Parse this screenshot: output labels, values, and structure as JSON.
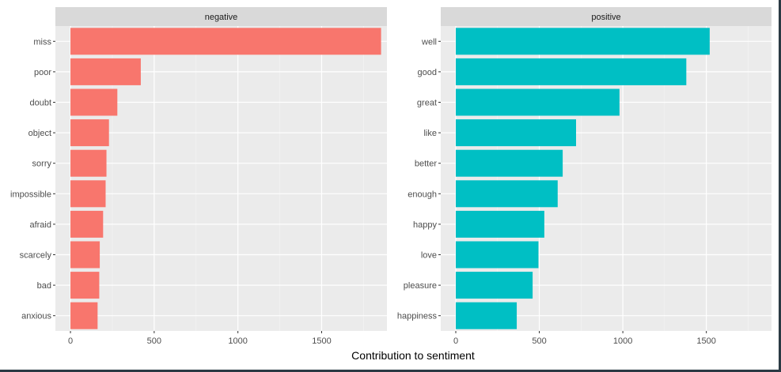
{
  "chart_data": {
    "type": "bar",
    "orientation": "horizontal",
    "xlabel": "Contribution to sentiment",
    "xlim": [
      0,
      1800
    ],
    "xticks": [
      0,
      500,
      1000,
      1500
    ],
    "grid": true,
    "legend": "none",
    "facets": [
      {
        "name": "negative",
        "color": "#F8766D",
        "categories": [
          "miss",
          "poor",
          "doubt",
          "object",
          "sorry",
          "impossible",
          "afraid",
          "scarcely",
          "bad",
          "anxious"
        ],
        "values": [
          1855,
          420,
          280,
          230,
          215,
          210,
          195,
          175,
          172,
          162
        ]
      },
      {
        "name": "positive",
        "color": "#00BFC4",
        "categories": [
          "well",
          "good",
          "great",
          "like",
          "better",
          "enough",
          "happy",
          "love",
          "pleasure",
          "happiness"
        ],
        "values": [
          1520,
          1380,
          980,
          720,
          640,
          610,
          530,
          495,
          460,
          365
        ]
      }
    ]
  }
}
